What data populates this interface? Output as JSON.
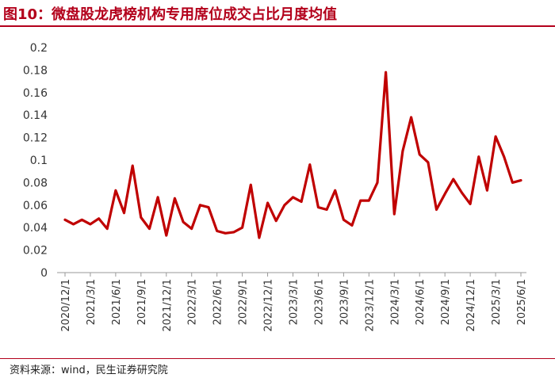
{
  "header": {
    "title": "图10：微盘股龙虎榜机构专用席位成交占比月度均值"
  },
  "footer": {
    "source": "资料来源：wind，民生证券研究院"
  },
  "colors": {
    "accent": "#b3001b",
    "line": "#c00000",
    "axis": "#999999"
  },
  "chart_data": {
    "type": "line",
    "title": "",
    "xlabel": "",
    "ylabel": "",
    "ylim": [
      0,
      0.2
    ],
    "yticks": [
      "0",
      "0.02",
      "0.04",
      "0.06",
      "0.08",
      "0.1",
      "0.12",
      "0.14",
      "0.16",
      "0.18",
      "0.2"
    ],
    "x_tick_labels": [
      "2020/12/1",
      "2021/3/1",
      "2021/6/1",
      "2021/9/1",
      "2021/12/1",
      "2022/3/1",
      "2022/6/1",
      "2022/9/1",
      "2022/12/1",
      "2023/3/1",
      "2023/6/1",
      "2023/9/1",
      "2023/12/1",
      "2024/3/1",
      "2024/6/1",
      "2024/9/1",
      "2024/12/1",
      "2025/3/1",
      "2025/6/1"
    ],
    "grid": false,
    "x": [
      "2020/12/1",
      "2021/1/1",
      "2021/2/1",
      "2021/3/1",
      "2021/4/1",
      "2021/5/1",
      "2021/6/1",
      "2021/7/1",
      "2021/8/1",
      "2021/9/1",
      "2021/10/1",
      "2021/11/1",
      "2021/12/1",
      "2022/1/1",
      "2022/2/1",
      "2022/3/1",
      "2022/4/1",
      "2022/5/1",
      "2022/6/1",
      "2022/7/1",
      "2022/8/1",
      "2022/9/1",
      "2022/10/1",
      "2022/11/1",
      "2022/12/1",
      "2023/1/1",
      "2023/2/1",
      "2023/3/1",
      "2023/4/1",
      "2023/5/1",
      "2023/6/1",
      "2023/7/1",
      "2023/8/1",
      "2023/9/1",
      "2023/10/1",
      "2023/11/1",
      "2023/12/1",
      "2024/1/1",
      "2024/2/1",
      "2024/3/1",
      "2024/4/1",
      "2024/5/1",
      "2024/6/1",
      "2024/7/1",
      "2024/8/1",
      "2024/9/1",
      "2024/10/1",
      "2024/11/1",
      "2024/12/1",
      "2025/1/1",
      "2025/2/1",
      "2025/3/1",
      "2025/4/1",
      "2025/5/1",
      "2025/6/1"
    ],
    "series": [
      {
        "values": [
          0.047,
          0.043,
          0.047,
          0.043,
          0.048,
          0.039,
          0.073,
          0.053,
          0.095,
          0.049,
          0.039,
          0.067,
          0.033,
          0.066,
          0.045,
          0.039,
          0.06,
          0.058,
          0.037,
          0.035,
          0.036,
          0.04,
          0.078,
          0.031,
          0.062,
          0.046,
          0.06,
          0.067,
          0.063,
          0.096,
          0.058,
          0.056,
          0.073,
          0.047,
          0.042,
          0.064,
          0.064,
          0.08,
          0.178,
          0.052,
          0.108,
          0.138,
          0.105,
          0.098,
          0.056,
          0.07,
          0.083,
          0.071,
          0.061,
          0.103,
          0.073,
          0.121,
          0.103,
          0.08,
          0.082
        ]
      }
    ]
  }
}
